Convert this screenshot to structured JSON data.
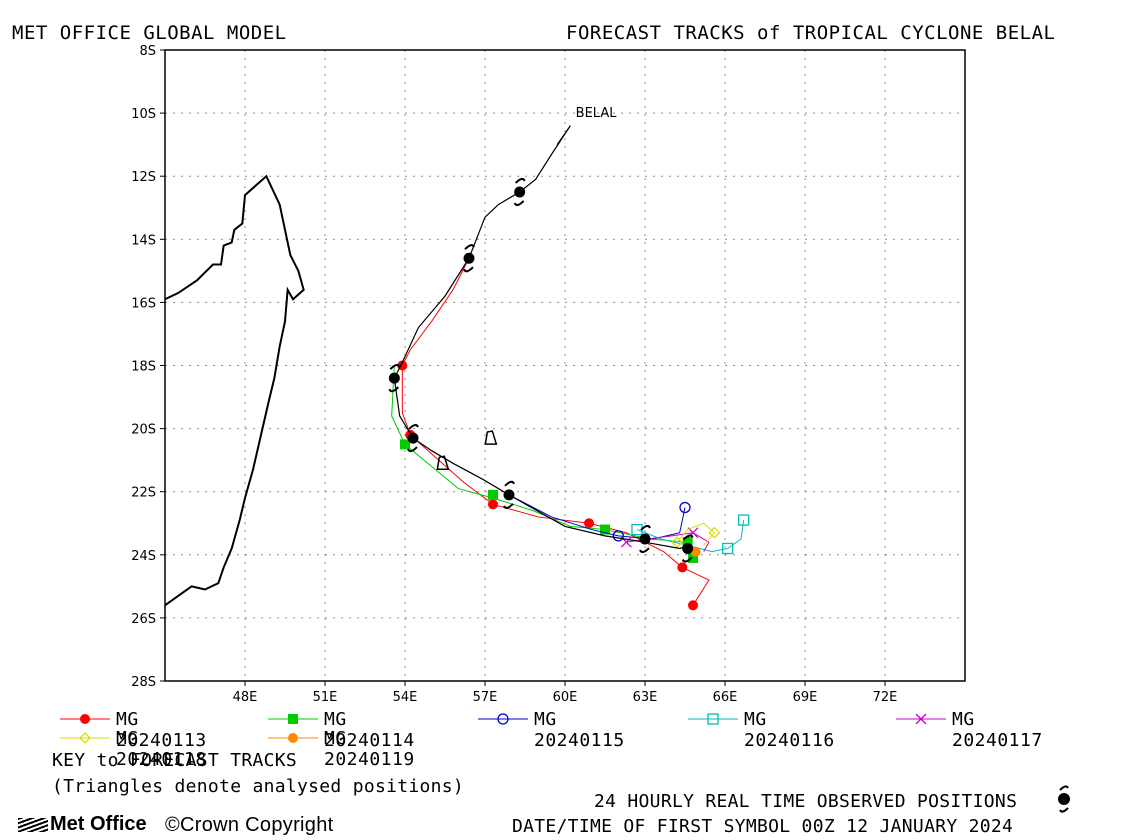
{
  "header": {
    "left_title": "MET OFFICE GLOBAL MODEL",
    "right_title": "FORECAST TRACKS of TROPICAL CYCLONE BELAL"
  },
  "chart_data": {
    "type": "map",
    "xlim": [
      45,
      75
    ],
    "ylim": [
      -28,
      -8
    ],
    "x_ticks": [
      "48E",
      "51E",
      "54E",
      "57E",
      "60E",
      "63E",
      "66E",
      "69E",
      "72E"
    ],
    "x_tick_values": [
      48,
      51,
      54,
      57,
      60,
      63,
      66,
      69,
      72
    ],
    "y_ticks": [
      "8S",
      "10S",
      "12S",
      "14S",
      "16S",
      "18S",
      "20S",
      "22S",
      "24S",
      "26S",
      "28S"
    ],
    "y_tick_values": [
      -8,
      -10,
      -12,
      -14,
      -16,
      -18,
      -20,
      -22,
      -24,
      -26,
      -28
    ],
    "grid": true,
    "storm_label": "BELAL",
    "coastline": [
      [
        45,
        -15.9
      ],
      [
        45.5,
        -15.7
      ],
      [
        46.2,
        -15.3
      ],
      [
        46.8,
        -14.8
      ],
      [
        47.1,
        -14.8
      ],
      [
        47.2,
        -14.2
      ],
      [
        47.5,
        -14.1
      ],
      [
        47.6,
        -13.7
      ],
      [
        47.9,
        -13.5
      ],
      [
        48.0,
        -12.6
      ],
      [
        48.4,
        -12.3
      ],
      [
        48.8,
        -12.0
      ],
      [
        49.3,
        -12.9
      ],
      [
        49.5,
        -13.7
      ],
      [
        49.7,
        -14.5
      ],
      [
        50.0,
        -15.0
      ],
      [
        50.2,
        -15.6
      ],
      [
        49.8,
        -15.9
      ],
      [
        49.6,
        -15.6
      ],
      [
        49.5,
        -16.6
      ],
      [
        49.3,
        -17.4
      ],
      [
        49.1,
        -18.4
      ],
      [
        48.9,
        -19.1
      ],
      [
        48.6,
        -20.2
      ],
      [
        48.3,
        -21.3
      ],
      [
        48.0,
        -22.2
      ],
      [
        47.8,
        -22.9
      ],
      [
        47.5,
        -23.8
      ],
      [
        47.2,
        -24.4
      ],
      [
        47.0,
        -24.9
      ],
      [
        46.5,
        -25.1
      ],
      [
        46.0,
        -25.0
      ],
      [
        45.5,
        -25.3
      ],
      [
        45.0,
        -25.6
      ]
    ],
    "observed_track": [
      [
        60.2,
        -10.4
      ],
      [
        59.5,
        -11.3
      ],
      [
        58.9,
        -12.1
      ],
      [
        58.3,
        -12.5
      ],
      [
        57.5,
        -12.9
      ],
      [
        57.0,
        -13.3
      ],
      [
        56.4,
        -14.6
      ],
      [
        55.5,
        -15.8
      ],
      [
        54.5,
        -16.8
      ],
      [
        53.9,
        -17.9
      ],
      [
        53.6,
        -18.4
      ],
      [
        53.8,
        -19.6
      ],
      [
        54.3,
        -20.3
      ],
      [
        55.0,
        -20.7
      ],
      [
        55.8,
        -21.1
      ],
      [
        56.9,
        -21.6
      ],
      [
        57.9,
        -22.1
      ],
      [
        60.0,
        -23.1
      ],
      [
        61.5,
        -23.4
      ],
      [
        63.0,
        -23.6
      ],
      [
        64.3,
        -23.8
      ],
      [
        64.7,
        -23.7
      ]
    ],
    "observed_positions": [
      [
        58.3,
        -12.5
      ],
      [
        56.4,
        -14.6
      ],
      [
        53.6,
        -18.4
      ],
      [
        54.3,
        -20.3
      ],
      [
        57.9,
        -22.1
      ],
      [
        63.0,
        -23.5
      ],
      [
        64.6,
        -23.8
      ]
    ],
    "analysed_triangles": [
      [
        57.2,
        -20.3
      ],
      [
        55.4,
        -21.1
      ]
    ],
    "series": [
      {
        "name": "MG 20240113",
        "color": "#ff0000",
        "marker": "filled-circle",
        "track": [
          [
            56.4,
            -14.6
          ],
          [
            55.8,
            -15.6
          ],
          [
            55.0,
            -16.6
          ],
          [
            54.2,
            -17.5
          ],
          [
            53.9,
            -18.0
          ],
          [
            53.9,
            -19.5
          ],
          [
            54.2,
            -20.2
          ],
          [
            55.0,
            -20.8
          ],
          [
            56.2,
            -21.7
          ],
          [
            57.3,
            -22.4
          ],
          [
            59.0,
            -22.8
          ],
          [
            60.9,
            -23.0
          ],
          [
            62.3,
            -23.3
          ],
          [
            63.7,
            -23.9
          ],
          [
            64.4,
            -24.4
          ],
          [
            65.4,
            -24.8
          ],
          [
            64.8,
            -25.6
          ]
        ],
        "points": [
          [
            53.9,
            -18.0
          ],
          [
            54.2,
            -20.2
          ],
          [
            57.3,
            -22.4
          ],
          [
            60.9,
            -23.0
          ],
          [
            64.4,
            -24.4
          ],
          [
            64.8,
            -25.6
          ]
        ]
      },
      {
        "name": "MG 20240114",
        "color": "#00cc00",
        "marker": "filled-square",
        "track": [
          [
            53.6,
            -18.0
          ],
          [
            53.5,
            -19.6
          ],
          [
            54.0,
            -20.5
          ],
          [
            55.0,
            -21.2
          ],
          [
            56.0,
            -21.9
          ],
          [
            57.3,
            -22.2
          ],
          [
            58.8,
            -22.6
          ],
          [
            60.2,
            -23.1
          ],
          [
            61.5,
            -23.2
          ],
          [
            63.2,
            -23.5
          ],
          [
            64.6,
            -23.6
          ],
          [
            64.8,
            -24.1
          ]
        ],
        "points": [
          [
            54.0,
            -20.5
          ],
          [
            57.3,
            -22.1
          ],
          [
            61.5,
            -23.2
          ],
          [
            64.6,
            -23.6
          ],
          [
            64.8,
            -24.1
          ]
        ]
      },
      {
        "name": "MG 20240115",
        "color": "#0000cc",
        "marker": "open-circle",
        "track": [
          [
            57.9,
            -22.1
          ],
          [
            59.5,
            -22.8
          ],
          [
            61.0,
            -23.2
          ],
          [
            62.0,
            -23.4
          ],
          [
            63.3,
            -23.5
          ],
          [
            64.3,
            -23.3
          ],
          [
            64.5,
            -22.5
          ]
        ],
        "points": [
          [
            62.0,
            -23.4
          ],
          [
            64.5,
            -22.5
          ]
        ]
      },
      {
        "name": "MG 20240116",
        "color": "#00bbbb",
        "marker": "open-square",
        "track": [
          [
            62.7,
            -23.2
          ],
          [
            63.6,
            -23.5
          ],
          [
            64.6,
            -23.7
          ],
          [
            65.5,
            -23.9
          ],
          [
            66.1,
            -23.8
          ],
          [
            66.6,
            -23.5
          ],
          [
            66.7,
            -22.9
          ]
        ],
        "points": [
          [
            62.7,
            -23.2
          ],
          [
            66.1,
            -23.8
          ],
          [
            66.7,
            -22.9
          ]
        ]
      },
      {
        "name": "MG 20240117",
        "color": "#cc00cc",
        "marker": "cross",
        "track": [
          [
            62.3,
            -23.6
          ],
          [
            63.1,
            -23.5
          ],
          [
            64.0,
            -23.4
          ],
          [
            64.8,
            -23.3
          ],
          [
            65.4,
            -23.6
          ],
          [
            65.2,
            -23.9
          ]
        ],
        "points": [
          [
            62.3,
            -23.6
          ],
          [
            64.8,
            -23.3
          ]
        ]
      },
      {
        "name": "MG 20240118",
        "color": "#dddd00",
        "marker": "open-diamond",
        "track": [
          [
            64.2,
            -23.6
          ],
          [
            64.6,
            -23.2
          ],
          [
            65.2,
            -23.0
          ],
          [
            65.6,
            -23.3
          ],
          [
            65.2,
            -23.7
          ]
        ],
        "points": [
          [
            64.2,
            -23.6
          ],
          [
            65.6,
            -23.3
          ]
        ]
      },
      {
        "name": "MG 20240119",
        "color": "#ff8800",
        "marker": "filled-circle",
        "track": [
          [
            64.6,
            -23.8
          ],
          [
            64.9,
            -23.9
          ]
        ],
        "points": [
          [
            64.9,
            -23.9
          ]
        ]
      }
    ]
  },
  "legend": {
    "items": [
      {
        "label": "MG 20240113",
        "color": "#ff0000",
        "marker": "filled-circle"
      },
      {
        "label": "MG 20240114",
        "color": "#00cc00",
        "marker": "filled-square"
      },
      {
        "label": "MG 20240115",
        "color": "#0000cc",
        "marker": "open-circle"
      },
      {
        "label": "MG 20240116",
        "color": "#00bbbb",
        "marker": "open-square"
      },
      {
        "label": "MG 20240117",
        "color": "#cc00cc",
        "marker": "cross"
      },
      {
        "label": "MG 20240118",
        "color": "#dddd00",
        "marker": "open-diamond"
      },
      {
        "label": "MG 20240119",
        "color": "#ff8800",
        "marker": "filled-circle"
      }
    ]
  },
  "notes": {
    "key": "KEY to FORECAST TRACKS",
    "triangles": "(Triangles denote analysed positions)",
    "observed": "24 HOURLY REAL TIME OBSERVED POSITIONS",
    "datetime": "DATE/TIME OF FIRST SYMBOL 00Z 12 JANUARY 2024"
  },
  "footer": {
    "logo": "Met Office",
    "copyright": "©Crown Copyright"
  }
}
